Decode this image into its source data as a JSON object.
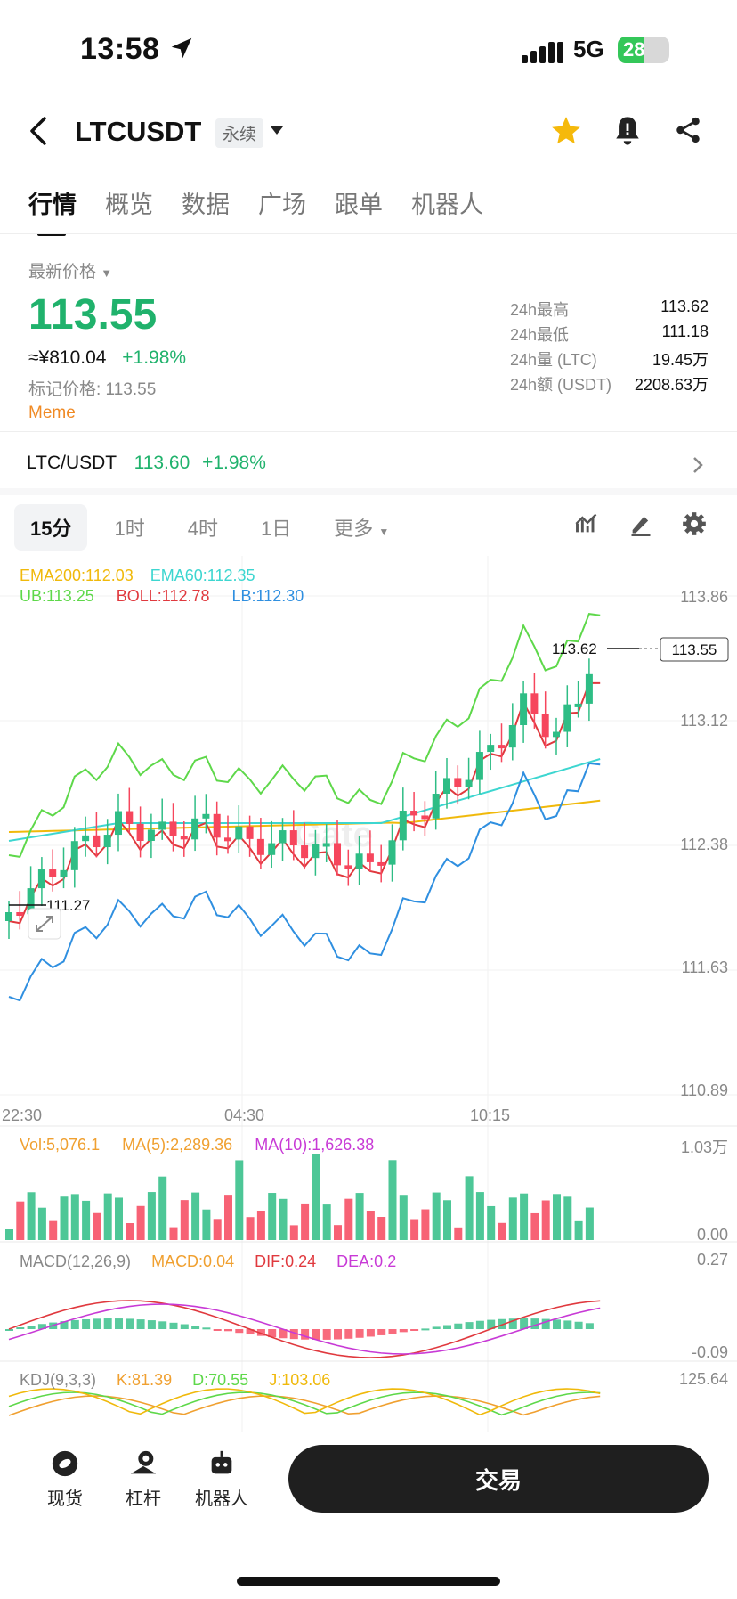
{
  "status_bar": {
    "time": "13:58",
    "network": "5G",
    "battery": "28"
  },
  "header": {
    "title": "LTCUSDT",
    "badge": "永续"
  },
  "tabs": [
    "行情",
    "概览",
    "数据",
    "广场",
    "跟单",
    "机器人"
  ],
  "ticker": {
    "latest_label": "最新价格",
    "price": "113.55",
    "cny": "≈¥810.04",
    "change": "+1.98%",
    "mark_price": "标记价格: 113.55",
    "tag": "Meme",
    "stats": [
      {
        "label": "24h最高",
        "value": "113.62"
      },
      {
        "label": "24h最低",
        "value": "111.18"
      },
      {
        "label": "24h量 (LTC)",
        "value": "19.45万"
      },
      {
        "label": "24h额 (USDT)",
        "value": "2208.63万"
      }
    ]
  },
  "spot_pair": {
    "pair": "LTC/USDT",
    "price": "113.60",
    "change": "+1.98%"
  },
  "intervals": [
    "15分",
    "1时",
    "4时",
    "1日",
    "更多"
  ],
  "indicators": {
    "ema200": "EMA200:112.03",
    "ema60": "EMA60:112.35",
    "ub": "UB:113.25",
    "boll": "BOLL:112.78",
    "lb": "LB:112.30",
    "vol": "Vol:5,076.1",
    "ma5": "MA(5):2,289.36",
    "ma10": "MA(10):1,626.38",
    "macd_title": "MACD(12,26,9)",
    "macd": "MACD:0.04",
    "dif": "DIF:0.24",
    "dea": "DEA:0.2",
    "kdj_title": "KDJ(9,3,3)",
    "k": "K:81.39",
    "d": "D:70.55",
    "j": "J:103.06"
  },
  "chart_data": {
    "type": "candlestick",
    "y_ticks": [
      "113.86",
      "113.12",
      "112.38",
      "111.63",
      "110.89"
    ],
    "x_ticks": [
      "22:30",
      "04:30",
      "10:15"
    ],
    "high_marker": "113.62",
    "low_marker": "111.27",
    "last_price_tag": "113.55",
    "vol_ticks": [
      "1.03万",
      "0.00"
    ],
    "macd_ticks": [
      "0.27",
      "-0.09"
    ],
    "kdj_ticks": [
      "125.64"
    ],
    "ylim": [
      110.89,
      113.86
    ],
    "watermark": "Gate",
    "colors": {
      "up": "#2ebd85",
      "down": "#f6465d",
      "ema200": "#f0b90b",
      "ema60": "#3dd6d0",
      "ub": "#5ed84a",
      "boll": "#e0393e",
      "lb": "#2f8fe0"
    }
  },
  "bottom_nav": {
    "spot": "现货",
    "margin": "杠杆",
    "bot": "机器人",
    "trade": "交易"
  }
}
